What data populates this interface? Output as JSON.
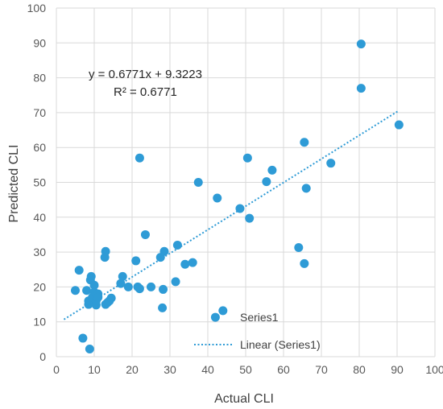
{
  "chart_data": {
    "type": "scatter",
    "xlabel": "Actual CLI",
    "ylabel": "Predicted CLI",
    "xlim": [
      0,
      100
    ],
    "ylim": [
      0,
      100
    ],
    "xticks": [
      0,
      10,
      20,
      30,
      40,
      50,
      60,
      70,
      80,
      90,
      100
    ],
    "yticks": [
      0,
      10,
      20,
      30,
      40,
      50,
      60,
      70,
      80,
      90,
      100
    ],
    "grid": true,
    "legend_position": "bottom-center",
    "colors": {
      "points": "#2E9BD6",
      "trendline": "#2E9BD6",
      "grid": "#D9D9D9"
    },
    "series": [
      {
        "name": "Series1",
        "points": [
          [
            5,
            19
          ],
          [
            6,
            24.8
          ],
          [
            7,
            5.3
          ],
          [
            8,
            19
          ],
          [
            8.5,
            15
          ],
          [
            8.5,
            16
          ],
          [
            8.8,
            2.2
          ],
          [
            9,
            22
          ],
          [
            9.2,
            23
          ],
          [
            9.5,
            17
          ],
          [
            10,
            20.5
          ],
          [
            10,
            18.5
          ],
          [
            10.5,
            16
          ],
          [
            10.5,
            14.8
          ],
          [
            11,
            18
          ],
          [
            11,
            17
          ],
          [
            12.8,
            28.5
          ],
          [
            13,
            30.2
          ],
          [
            13,
            15
          ],
          [
            13.5,
            15.5
          ],
          [
            14,
            16
          ],
          [
            14.5,
            16.8
          ],
          [
            17,
            21
          ],
          [
            17.5,
            23
          ],
          [
            19,
            20
          ],
          [
            21,
            27.5
          ],
          [
            21.5,
            20
          ],
          [
            22,
            57
          ],
          [
            22,
            19.5
          ],
          [
            23.5,
            35
          ],
          [
            25,
            20
          ],
          [
            27.5,
            28.5
          ],
          [
            28,
            14
          ],
          [
            28.2,
            19.3
          ],
          [
            28.5,
            30.2
          ],
          [
            31.5,
            21.5
          ],
          [
            32,
            32
          ],
          [
            34,
            26.5
          ],
          [
            36,
            27
          ],
          [
            37.5,
            50
          ],
          [
            42,
            11.3
          ],
          [
            42.5,
            45.5
          ],
          [
            44,
            13.2
          ],
          [
            48.5,
            42.5
          ],
          [
            50.5,
            57
          ],
          [
            51,
            39.7
          ],
          [
            55.5,
            50.2
          ],
          [
            57,
            53.5
          ],
          [
            64,
            31.3
          ],
          [
            65.5,
            26.7
          ],
          [
            65.5,
            61.5
          ],
          [
            66,
            48.3
          ],
          [
            72.5,
            55.5
          ],
          [
            80.5,
            77
          ],
          [
            80.5,
            89.7
          ],
          [
            90.5,
            66.5
          ]
        ]
      }
    ],
    "trendline": {
      "name": "Linear (Series1)",
      "type": "linear",
      "slope": 0.6771,
      "intercept": 9.3223,
      "x_range": [
        2,
        90.5
      ],
      "equation": "y = 0.6771x + 9.3223",
      "r_squared": "R² = 0.6771"
    }
  }
}
